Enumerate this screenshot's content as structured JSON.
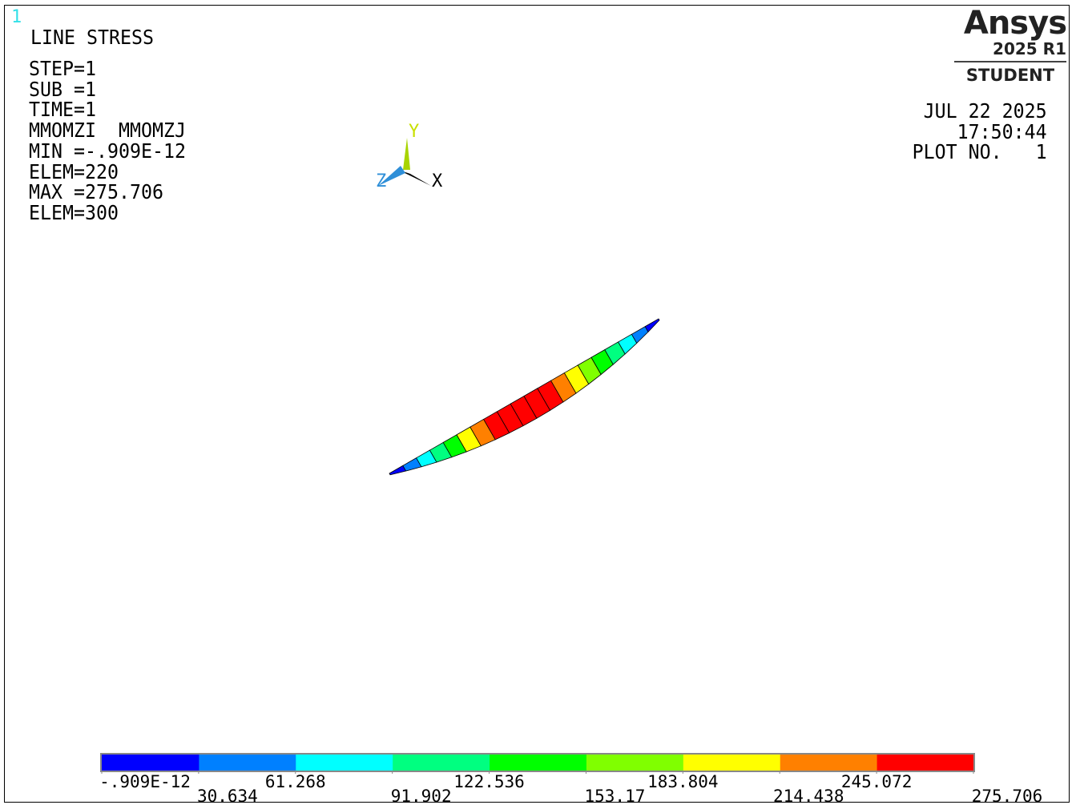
{
  "window_number": "1",
  "plot_title": "LINE STRESS",
  "info": {
    "step": "STEP=1",
    "sub": "SUB =1",
    "time": "TIME=1",
    "items": "MMOMZI  MMOMZJ",
    "min": "MIN =-.909E-12",
    "min_elem": "ELEM=220",
    "max": "MAX =275.706",
    "max_elem": "ELEM=300"
  },
  "timestamp": {
    "date": "JUL 22 2025",
    "time": "17:50:44",
    "plot_no": "PLOT NO.   1"
  },
  "brand": {
    "name": "Ansys",
    "version": "2025 R1",
    "edition": "STUDENT"
  },
  "triad": {
    "x_label": "X",
    "y_label": "Y",
    "z_label": "Z"
  },
  "legend": {
    "colors": [
      "#0000ff",
      "#0080ff",
      "#00ffff",
      "#00ff80",
      "#00ff00",
      "#80ff00",
      "#ffff00",
      "#ff8000",
      "#ff0000"
    ],
    "labels_top": [
      "-.909E-12",
      "61.268",
      "122.536",
      "183.804",
      "245.072"
    ],
    "labels_bottom": [
      "30.634",
      "91.902",
      "153.17",
      "214.438",
      "275.706"
    ]
  },
  "beam": {
    "segment_values": [
      20,
      45,
      75,
      110,
      150,
      190,
      225,
      255,
      270,
      275,
      272,
      262,
      245,
      210,
      180,
      150,
      120,
      90,
      55,
      20
    ]
  }
}
